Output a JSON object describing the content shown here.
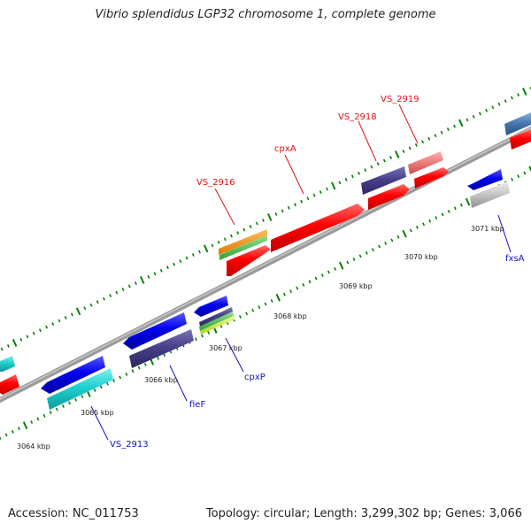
{
  "title": "Vibrio splendidus LGP32 chromosome 1, complete genome",
  "footer": {
    "accession": "Accession: NC_011753",
    "summary": "Topology: circular; Length: 3,299,302 bp; Genes: 3,066"
  },
  "ticks": [
    "3064 kbp",
    "3065 kbp",
    "3066 kbp",
    "3067 kbp",
    "3068 kbp",
    "3069 kbp",
    "3070 kbp",
    "3071 kbp"
  ],
  "genes": {
    "VS_2916": "VS_2916",
    "cpxA": "cpxA",
    "VS_2918": "VS_2918",
    "VS_2919": "VS_2919",
    "fxsA": "fxsA",
    "cpxP": "cpxP",
    "fieF": "fieF",
    "VS_2913": "VS_2913"
  },
  "colors": {
    "forward_cds": "#ff0000",
    "reverse_cds": "#0000ff",
    "backbone": "#808080",
    "tick": "#008000",
    "forward_label": "#e01010",
    "reverse_label": "#1010c0"
  }
}
